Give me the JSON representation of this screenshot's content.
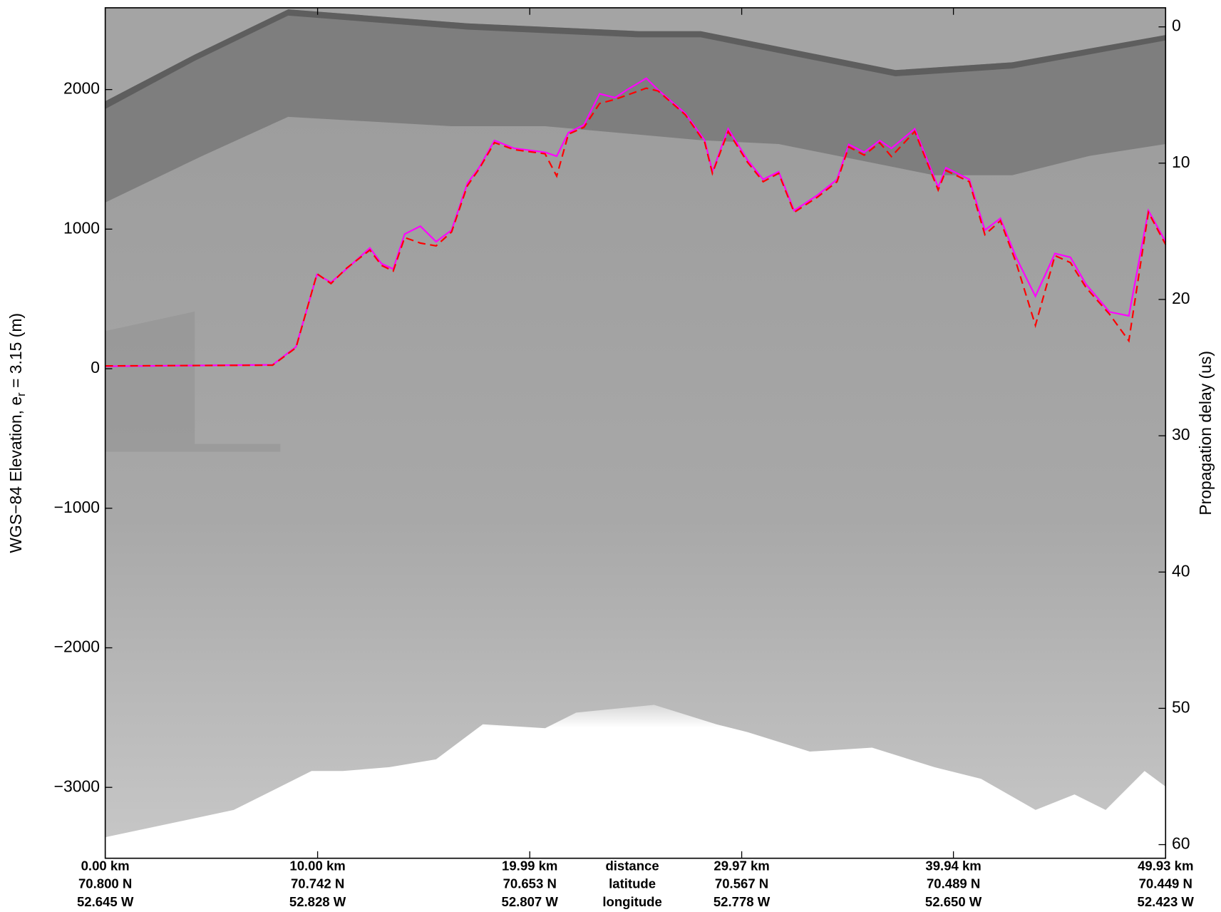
{
  "chart_data": {
    "type": "line",
    "y_label": {
      "text": "WGS−84 Elevation, e",
      "subscript": "r",
      "text_after": " = 3.15 (m)"
    },
    "y2_label": "Propagation delay (us)",
    "xlim": [
      0,
      49.93
    ],
    "xticks": [
      {
        "value": 0,
        "label": "0.00 km"
      },
      {
        "value": 10,
        "label": "10.00 km"
      },
      {
        "value": 19.99,
        "label": "19.99 km"
      },
      {
        "value": 29.97,
        "label": "29.97 km"
      },
      {
        "value": 39.94,
        "label": "39.94 km"
      },
      {
        "value": 49.93,
        "label": "49.93 km"
      }
    ],
    "xtick_latitudes": [
      "70.800 N",
      "70.742 N",
      "70.653 N",
      "70.567 N",
      "70.489 N",
      "70.449 N"
    ],
    "xtick_longitudes": [
      "52.645 W",
      "52.828 W",
      "52.807 W",
      "52.778 W",
      "52.650 W",
      "52.423 W"
    ],
    "xtick_row_labels": [
      "distance",
      "latitude",
      "longitude"
    ],
    "ylim": [
      -3508,
      2586
    ],
    "yticks": [
      {
        "value": -3000,
        "label": "−3000"
      },
      {
        "value": -2000,
        "label": "−2000"
      },
      {
        "value": -1000,
        "label": "−1000"
      },
      0,
      1000,
      2000
    ],
    "y2lim": [
      61.0,
      -1.4
    ],
    "y2ticks": [
      0,
      10,
      20,
      30,
      40,
      50,
      60
    ],
    "x": [
      0,
      7.88,
      8.98,
      9.97,
      10.63,
      11.36,
      12.46,
      13.01,
      13.56,
      14.1,
      14.84,
      15.58,
      16.31,
      17.05,
      17.6,
      18.33,
      19.25,
      20.71,
      21.26,
      21.81,
      22.54,
      23.28,
      24.01,
      24.56,
      25.48,
      26.03,
      27.31,
      28.23,
      28.59,
      29.33,
      30.24,
      30.98,
      31.71,
      32.44,
      33.54,
      34.46,
      35.01,
      35.74,
      36.47,
      37.02,
      38.12,
      39.22,
      39.59,
      40.69,
      41.42,
      42.15,
      42.89,
      43.8,
      44.72,
      45.45,
      46.19,
      47.29,
      48.2,
      49.12,
      49.93
    ],
    "series": [
      {
        "color": "#ff00ff",
        "dashed": false,
        "values": [
          17,
          28,
          156,
          675,
          619,
          714,
          865,
          753,
          714,
          965,
          1021,
          910,
          993,
          1328,
          1440,
          1635,
          1579,
          1551,
          1523,
          1691,
          1747,
          1970,
          1942,
          1998,
          2081,
          1998,
          1830,
          1635,
          1412,
          1719,
          1496,
          1356,
          1412,
          1133,
          1244,
          1356,
          1607,
          1551,
          1635,
          1579,
          1719,
          1300,
          1440,
          1356,
          993,
          1077,
          798,
          519,
          826,
          798,
          603,
          407,
          379,
          1133,
          910
        ]
      },
      {
        "color": "#ff0000",
        "dashed": true,
        "values": [
          20,
          25,
          150,
          680,
          610,
          720,
          850,
          740,
          700,
          940,
          900,
          880,
          980,
          1310,
          1430,
          1620,
          1570,
          1540,
          1380,
          1680,
          1730,
          1900,
          1930,
          1960,
          2010,
          1990,
          1820,
          1620,
          1400,
          1700,
          1480,
          1340,
          1400,
          1120,
          1230,
          1340,
          1590,
          1530,
          1620,
          1520,
          1700,
          1280,
          1420,
          1340,
          960,
          1060,
          760,
          310,
          810,
          760,
          580,
          390,
          200,
          1120,
          890
        ]
      }
    ]
  }
}
